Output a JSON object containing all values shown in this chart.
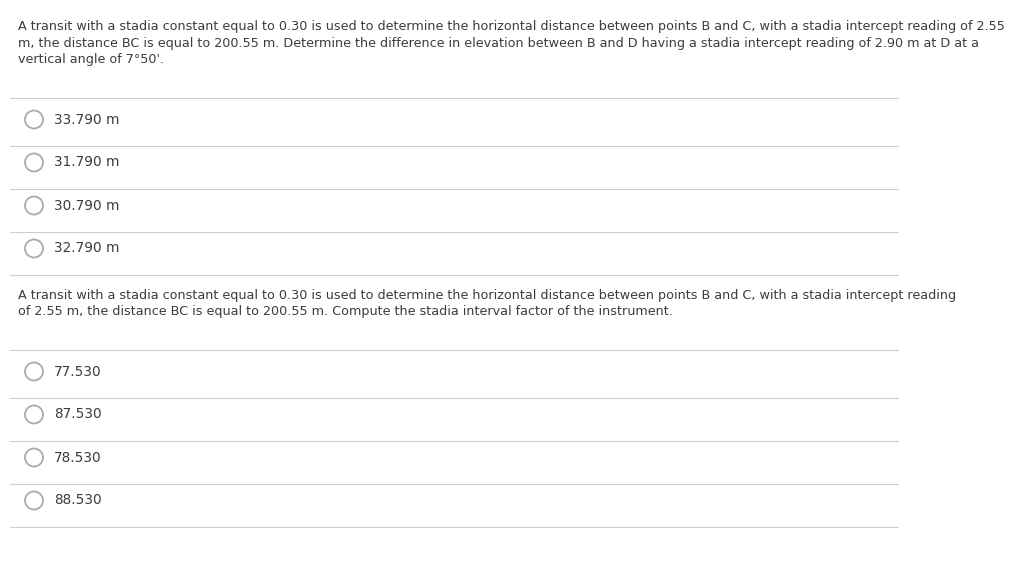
{
  "background_color": "#ffffff",
  "question1": {
    "lines": [
      "A transit with a stadia constant equal to 0.30 is used to determine the horizontal distance between points B and C, with a stadia intercept reading of 2.55",
      "m, the distance BC is equal to 200.55 m. Determine the difference in elevation between B and D having a stadia intercept reading of 2.90 m at D at a",
      "vertical angle of 7°50'."
    ],
    "options": [
      "33.790 m",
      "31.790 m",
      "30.790 m",
      "32.790 m"
    ]
  },
  "question2": {
    "lines": [
      "A transit with a stadia constant equal to 0.30 is used to determine the horizontal distance between points B and C, with a stadia intercept reading",
      "of 2.55 m, the distance BC is equal to 200.55 m. Compute the stadia interval factor of the instrument."
    ],
    "options": [
      "77.530",
      "87.530",
      "78.530",
      "88.530"
    ]
  },
  "text_color": "#3c3c3c",
  "option_text_color": "#3c3c3c",
  "line_color": "#d0d0d0",
  "circle_edge_color": "#aaaaaa",
  "font_size_question": 9.2,
  "font_size_option": 9.8
}
